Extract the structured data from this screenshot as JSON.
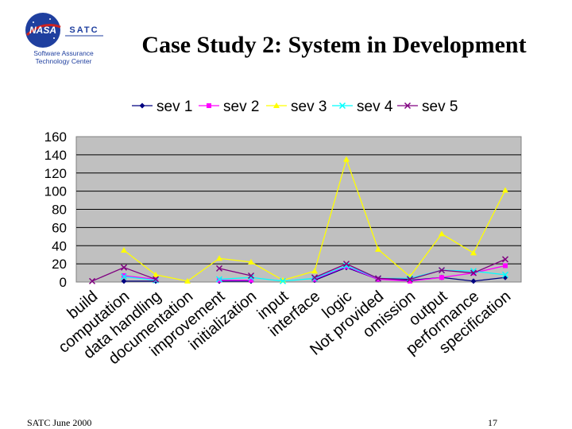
{
  "slide": {
    "title": "Case Study 2: System in Development",
    "footer_left": "SATC June 2000",
    "page_number": "17"
  },
  "logo": {
    "badge_text": "NASA",
    "org_short": "SATC",
    "org_line1": "Software Assurance",
    "org_line2": "Technology Center"
  },
  "colors": {
    "plot_bg": "#c0c0c0",
    "gridline": "#000000",
    "nasa_blue": "#1f3f9f",
    "nasa_red": "#cc2222"
  },
  "chart_data": {
    "type": "line",
    "title": "",
    "xlabel": "",
    "ylabel": "",
    "ylim": [
      0,
      160
    ],
    "yticks": [
      0,
      20,
      40,
      60,
      80,
      100,
      120,
      140,
      160
    ],
    "grid": "horizontal",
    "legend_position": "top",
    "categories": [
      "build",
      "computation",
      "data handling",
      "documentation",
      "improvement",
      "initialization",
      "input",
      "interface",
      "logic",
      "Not provided",
      "omission",
      "output",
      "performance",
      "specification"
    ],
    "series": [
      {
        "name": "sev 1",
        "color": "#000080",
        "marker": "diamond",
        "values": [
          null,
          1,
          1,
          null,
          1,
          1,
          null,
          2,
          16,
          3,
          2,
          5,
          1,
          5
        ]
      },
      {
        "name": "sev 2",
        "color": "#ff00ff",
        "marker": "square",
        "values": [
          null,
          7,
          3,
          null,
          2,
          2,
          null,
          3,
          17,
          3,
          1,
          5,
          10,
          18
        ]
      },
      {
        "name": "sev 3",
        "color": "#ffff00",
        "marker": "triangle",
        "values": [
          null,
          35,
          8,
          1,
          26,
          22,
          2,
          12,
          135,
          36,
          6,
          53,
          32,
          101
        ]
      },
      {
        "name": "sev 4",
        "color": "#00ffff",
        "marker": "x",
        "values": [
          null,
          6,
          2,
          null,
          3,
          5,
          1,
          4,
          18,
          4,
          4,
          13,
          12,
          8
        ]
      },
      {
        "name": "sev 5",
        "color": "#800080",
        "marker": "x",
        "values": [
          1,
          16,
          3,
          null,
          15,
          7,
          null,
          5,
          20,
          4,
          3,
          13,
          10,
          25
        ]
      }
    ]
  }
}
